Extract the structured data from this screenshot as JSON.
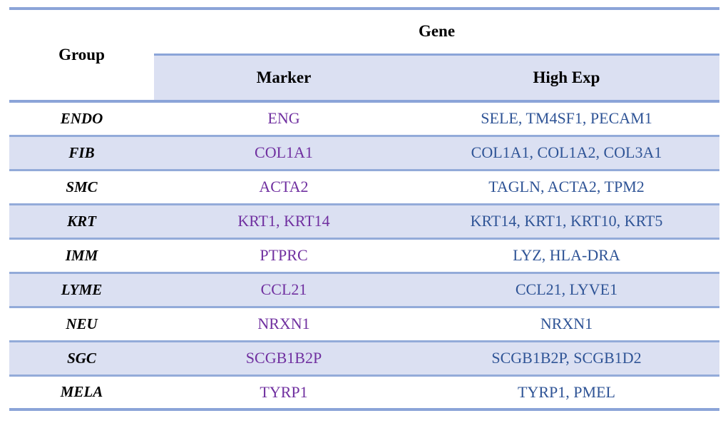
{
  "header": {
    "group": "Group",
    "gene": "Gene",
    "marker": "Marker",
    "high_exp": "High Exp"
  },
  "rows": [
    {
      "group": "ENDO",
      "marker": "ENG",
      "high_exp": "SELE, TM4SF1, PECAM1"
    },
    {
      "group": "FIB",
      "marker": "COL1A1",
      "high_exp": "COL1A1, COL1A2, COL3A1"
    },
    {
      "group": "SMC",
      "marker": "ACTA2",
      "high_exp": "TAGLN, ACTA2, TPM2"
    },
    {
      "group": "KRT",
      "marker": "KRT1, KRT14",
      "high_exp": "KRT14, KRT1, KRT10, KRT5"
    },
    {
      "group": "IMM",
      "marker": "PTPRC",
      "high_exp": "LYZ, HLA-DRA"
    },
    {
      "group": "LYME",
      "marker": "CCL21",
      "high_exp": "CCL21, LYVE1"
    },
    {
      "group": "NEU",
      "marker": "NRXN1",
      "high_exp": "NRXN1"
    },
    {
      "group": "SGC",
      "marker": "SCGB1B2P",
      "high_exp": "SCGB1B2P, SCGB1D2"
    },
    {
      "group": "MELA",
      "marker": "TYRP1",
      "high_exp": "TYRP1, PMEL"
    }
  ],
  "colors": {
    "accent_border": "#8ba4d8",
    "row_separator": "#93abd9",
    "stripe_bg": "#dbe0f2",
    "header_bg": "#dbe0f2",
    "marker_text": "#7030a0",
    "high_exp_text": "#2f5496",
    "header_text": "#000000",
    "group_text": "#000000"
  }
}
